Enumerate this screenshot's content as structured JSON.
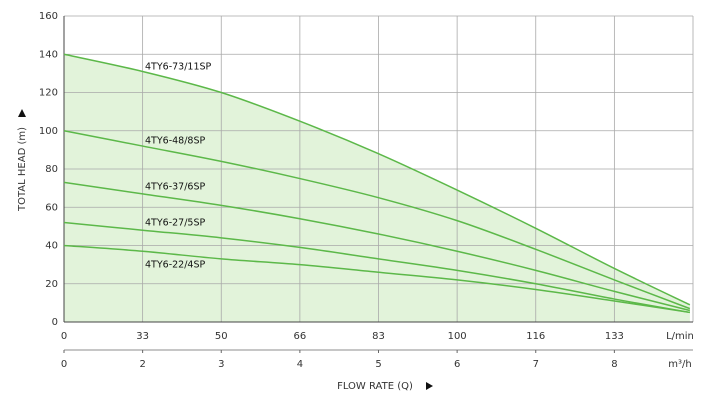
{
  "chart_data": {
    "type": "line",
    "x_label": "FLOW RATE (Q)",
    "y_label": "TOTAL HEAD (m)",
    "x_unit": "m³/h",
    "x2_unit": "L/min",
    "x": [
      0,
      2,
      3,
      4,
      5,
      6,
      7,
      8,
      8.96
    ],
    "xlim": [
      0,
      9
    ],
    "ylim": [
      0,
      160
    ],
    "xticks": [
      0,
      2,
      3,
      4,
      5,
      6,
      7,
      8
    ],
    "x2ticks": [
      {
        "value": 0,
        "label": "0"
      },
      {
        "value": 2,
        "label": "33"
      },
      {
        "value": 3,
        "label": "50"
      },
      {
        "value": 4,
        "label": "66"
      },
      {
        "value": 5,
        "label": "83"
      },
      {
        "value": 6,
        "label": "100"
      },
      {
        "value": 7,
        "label": "116"
      },
      {
        "value": 8,
        "label": "133"
      }
    ],
    "yticks": [
      0,
      20,
      40,
      60,
      80,
      100,
      120,
      140,
      160
    ],
    "grid": true,
    "area_color": "#e2f3da",
    "series": [
      {
        "name": "4TY6-73/11SP",
        "color": "#5cb849",
        "values": [
          140,
          131,
          120,
          105,
          88,
          69,
          49,
          28,
          9
        ]
      },
      {
        "name": "4TY6-48/8SP",
        "color": "#5cb849",
        "values": [
          100,
          92,
          84,
          75,
          65,
          53,
          38,
          22,
          7
        ]
      },
      {
        "name": "4TY6-37/6SP",
        "color": "#5cb849",
        "values": [
          73,
          67,
          61,
          54,
          46,
          37,
          27,
          16,
          6
        ]
      },
      {
        "name": "4TY6-27/5SP",
        "color": "#5cb849",
        "values": [
          52,
          48,
          44,
          39,
          33,
          27,
          20,
          12,
          5
        ]
      },
      {
        "name": "4TY6-22/4SP",
        "color": "#5cb849",
        "values": [
          40,
          37,
          33,
          30,
          26,
          22,
          17,
          11,
          5
        ]
      }
    ]
  }
}
